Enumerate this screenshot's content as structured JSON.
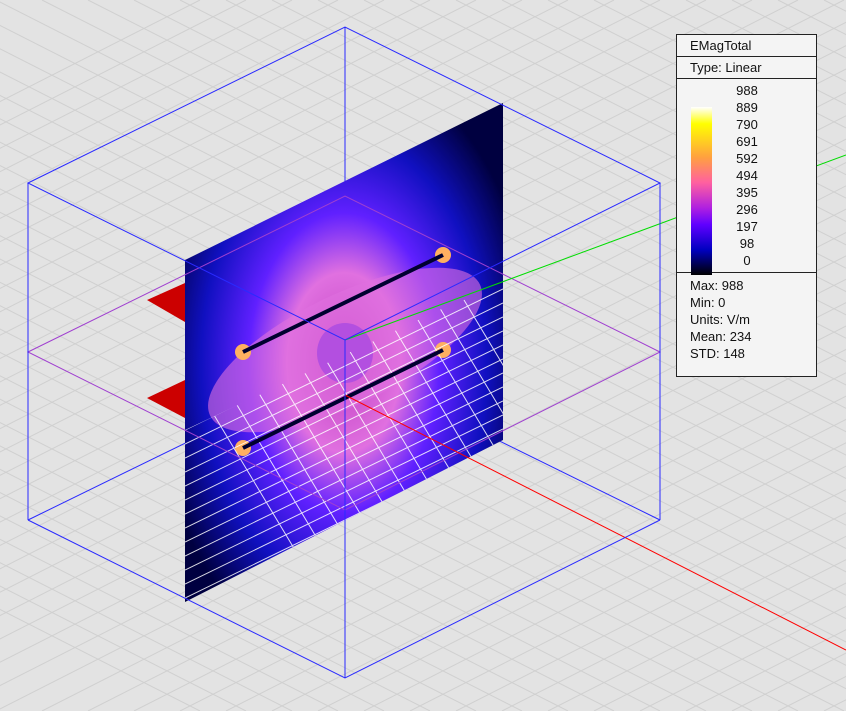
{
  "legend": {
    "title": "EMagTotal",
    "type": "Type: Linear",
    "ticks": [
      "988",
      "889",
      "790",
      "691",
      "592",
      "494",
      "395",
      "296",
      "197",
      "98",
      "0"
    ],
    "stats": [
      "Max: 988",
      "Min: 0",
      "Units: V/m",
      "Mean: 234",
      "STD: 148"
    ]
  },
  "colors": {
    "box": "#2a2aff",
    "midplane": "#a040d0",
    "x_axis": "#ff0000",
    "y_axis": "#00dd00",
    "port": "#cc0000",
    "background": "#e3e3e3"
  }
}
